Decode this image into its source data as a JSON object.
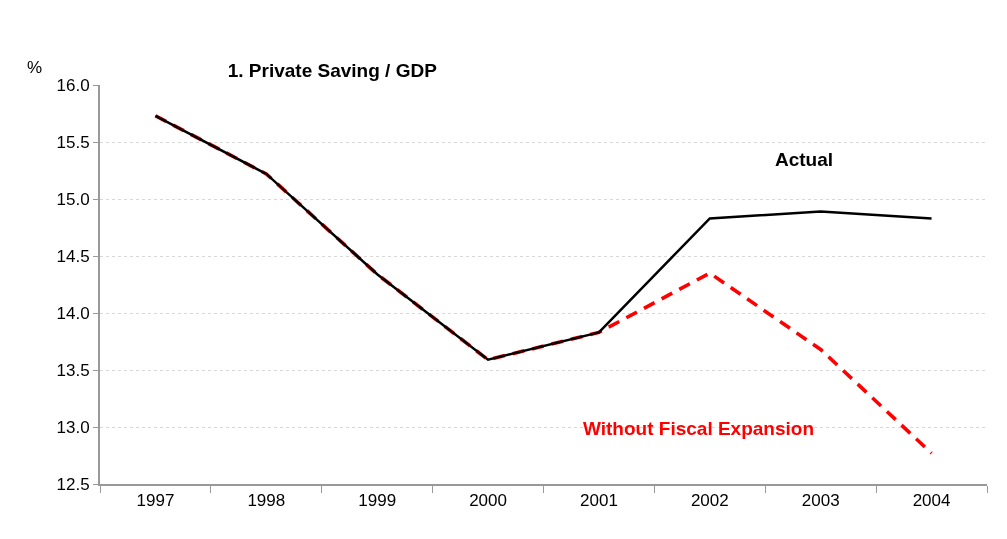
{
  "chart_data": {
    "type": "line",
    "title": "1. Private Saving / GDP",
    "ylabel": "%",
    "categories": [
      "1997",
      "1998",
      "1999",
      "2000",
      "2001",
      "2002",
      "2003",
      "2004"
    ],
    "series": [
      {
        "name": "Without Fiscal Expansion",
        "color": "#ff0000",
        "line_style": "dashed",
        "values": [
          15.73,
          15.22,
          14.34,
          13.59,
          13.83,
          14.35,
          13.68,
          12.77
        ]
      },
      {
        "name": "Actual",
        "color": "#000000",
        "line_style": "solid",
        "values": [
          15.73,
          15.22,
          14.34,
          13.59,
          13.83,
          14.83,
          14.89,
          14.83
        ]
      }
    ],
    "ylim": [
      12.5,
      16.0
    ],
    "yticks": [
      {
        "value": 12.5,
        "label": "12.5"
      },
      {
        "value": 13,
        "label": "13.0"
      },
      {
        "value": 13.5,
        "label": "13.5"
      },
      {
        "value": 14,
        "label": "14.0"
      },
      {
        "value": 14.5,
        "label": "14.5"
      },
      {
        "value": 15,
        "label": "15.0"
      },
      {
        "value": 15.5,
        "label": "15.5"
      },
      {
        "value": 16,
        "label": "16.0"
      }
    ],
    "grid": "y",
    "legend": false,
    "marker": "none"
  }
}
